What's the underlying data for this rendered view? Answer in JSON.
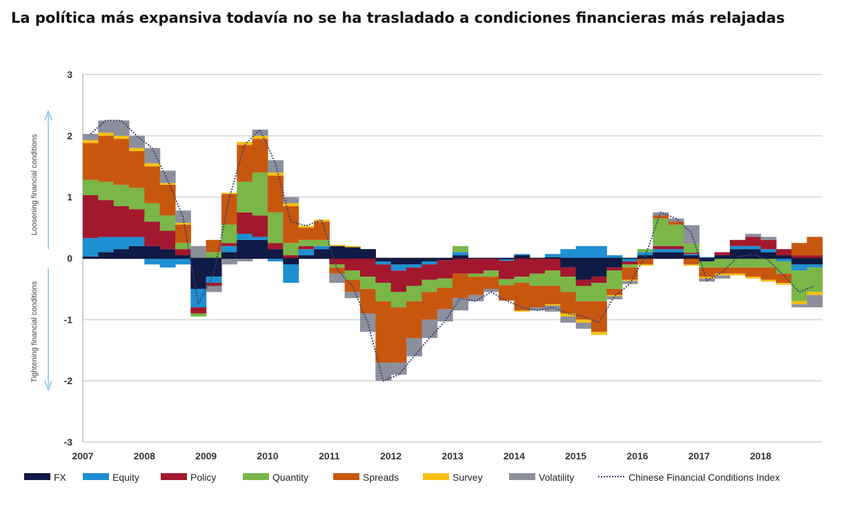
{
  "title": "La política más expansiva todavía no se ha trasladado a condiciones financieras más relajadas",
  "chart_data": {
    "type": "area",
    "stacked": true,
    "title": "La política más expansiva todavía no se ha trasladado a condiciones financieras más relajadas",
    "ylim": [
      -3,
      3
    ],
    "yticks": [
      "3",
      "2",
      "1",
      "0",
      "-1",
      "-2",
      "-3"
    ],
    "xticks": [
      "2007",
      "2008",
      "2009",
      "2010",
      "2011",
      "2012",
      "2013",
      "2014",
      "2015",
      "2016",
      "2017",
      "2018"
    ],
    "xlim": [
      2007,
      2019
    ],
    "grid": true,
    "legend": "bottom",
    "annotations": {
      "up": "Loosening financial conditions",
      "down": "Tightening financial conditions"
    },
    "x": [
      2007.0,
      2007.25,
      2007.5,
      2007.75,
      2008.0,
      2008.25,
      2008.5,
      2008.75,
      2009.0,
      2009.25,
      2009.5,
      2009.75,
      2010.0,
      2010.25,
      2010.5,
      2010.75,
      2011.0,
      2011.25,
      2011.5,
      2011.75,
      2012.0,
      2012.25,
      2012.5,
      2012.75,
      2013.0,
      2013.25,
      2013.5,
      2013.75,
      2014.0,
      2014.25,
      2014.5,
      2014.75,
      2015.0,
      2015.25,
      2015.5,
      2015.75,
      2016.0,
      2016.25,
      2016.5,
      2016.75,
      2017.0,
      2017.25,
      2017.5,
      2017.75,
      2018.0,
      2018.25,
      2018.5,
      2018.75
    ],
    "series": [
      {
        "name": "FX",
        "color": "#0f1a45",
        "values": [
          0.03,
          0.1,
          0.15,
          0.2,
          0.2,
          0.15,
          0.05,
          -0.5,
          -0.3,
          0.1,
          0.3,
          0.3,
          0.15,
          -0.1,
          0.05,
          0.15,
          0.2,
          0.18,
          0.15,
          -0.05,
          -0.1,
          -0.1,
          -0.05,
          -0.03,
          0.05,
          0,
          0,
          -0.02,
          0.05,
          0,
          0.02,
          -0.15,
          -0.35,
          -0.3,
          -0.15,
          0,
          0.05,
          0.1,
          0.1,
          0.05,
          -0.05,
          0.05,
          0.15,
          0.15,
          0.1,
          0.05,
          -0.1,
          -0.1
        ]
      },
      {
        "name": "Equity",
        "color": "#1e8fd0",
        "values": [
          0.3,
          0.25,
          0.2,
          0.15,
          -0.1,
          -0.15,
          -0.1,
          -0.3,
          -0.1,
          0.1,
          0.1,
          0.05,
          -0.05,
          -0.3,
          0.1,
          0.05,
          0,
          0,
          0,
          -0.05,
          -0.1,
          -0.05,
          -0.05,
          0,
          0.05,
          0,
          0,
          -0.02,
          0.02,
          0,
          0.05,
          0.15,
          0.2,
          0.2,
          0.05,
          -0.05,
          0.05,
          0.05,
          0.05,
          0.02,
          0.02,
          0,
          0.05,
          0.05,
          0.05,
          -0.05,
          -0.1,
          -0.05
        ]
      },
      {
        "name": "Policy",
        "color": "#a3182e",
        "values": [
          0.7,
          0.6,
          0.5,
          0.45,
          0.4,
          0.3,
          0.1,
          -0.1,
          -0.05,
          0.05,
          0.35,
          0.35,
          0.1,
          0.05,
          0.05,
          0,
          -0.1,
          -0.2,
          -0.3,
          -0.3,
          -0.35,
          -0.3,
          -0.25,
          -0.3,
          -0.25,
          -0.25,
          -0.2,
          -0.3,
          -0.3,
          -0.25,
          -0.2,
          -0.15,
          -0.1,
          -0.1,
          -0.05,
          -0.05,
          0,
          0.05,
          0.05,
          0.02,
          0,
          0.05,
          0.1,
          0.15,
          0.15,
          0.1,
          0.05,
          0.05
        ]
      },
      {
        "name": "Quantity",
        "color": "#7ab648",
        "values": [
          0.25,
          0.3,
          0.35,
          0.35,
          0.3,
          0.25,
          0.1,
          -0.05,
          0.1,
          0.3,
          0.5,
          0.7,
          0.5,
          0.2,
          0.1,
          0.1,
          -0.05,
          -0.15,
          -0.2,
          -0.3,
          -0.25,
          -0.25,
          -0.2,
          -0.15,
          0.1,
          -0.05,
          -0.1,
          -0.1,
          -0.1,
          -0.2,
          -0.25,
          -0.25,
          -0.25,
          -0.3,
          -0.3,
          -0.05,
          0.05,
          0.45,
          0.35,
          0.15,
          -0.1,
          -0.15,
          -0.15,
          -0.15,
          -0.15,
          -0.2,
          -0.5,
          -0.4
        ]
      },
      {
        "name": "Spreads",
        "color": "#c8570e",
        "values": [
          0.6,
          0.75,
          0.75,
          0.6,
          0.6,
          0.5,
          0.3,
          0,
          0.2,
          0.5,
          0.6,
          0.55,
          0.6,
          0.6,
          0.2,
          0.3,
          -0.1,
          -0.2,
          -0.4,
          -1.0,
          -0.9,
          -0.6,
          -0.45,
          -0.35,
          -0.4,
          -0.3,
          -0.2,
          -0.25,
          -0.45,
          -0.35,
          -0.3,
          -0.35,
          -0.3,
          -0.5,
          -0.1,
          -0.2,
          -0.1,
          0.05,
          0.05,
          -0.1,
          -0.15,
          -0.1,
          -0.1,
          -0.15,
          -0.2,
          -0.15,
          0.2,
          0.3
        ]
      },
      {
        "name": "Survey",
        "color": "#f7bf11",
        "values": [
          0.05,
          0.05,
          0.05,
          0.05,
          0.05,
          0.03,
          0.03,
          0,
          0,
          0.02,
          0.05,
          0.05,
          0.05,
          0.05,
          0.03,
          0.03,
          0.02,
          0.02,
          0,
          0,
          0,
          0,
          0,
          0,
          0,
          0,
          0,
          0,
          -0.02,
          0,
          -0.02,
          -0.05,
          -0.05,
          -0.05,
          -0.02,
          -0.02,
          -0.02,
          0,
          0,
          -0.02,
          -0.03,
          -0.03,
          -0.03,
          -0.03,
          -0.03,
          -0.03,
          -0.05,
          -0.05
        ]
      },
      {
        "name": "Volatility",
        "color": "#8c8f9c",
        "values": [
          0.1,
          0.2,
          0.25,
          0.2,
          0.25,
          0.2,
          0.2,
          0.2,
          -0.1,
          -0.1,
          -0.05,
          0.1,
          0.2,
          0.1,
          0,
          0,
          -0.15,
          -0.1,
          -0.3,
          -0.3,
          -0.2,
          -0.3,
          -0.3,
          -0.2,
          -0.2,
          -0.1,
          -0.05,
          0,
          0,
          -0.05,
          -0.1,
          -0.1,
          -0.1,
          0,
          -0.05,
          -0.05,
          0,
          0.05,
          0.05,
          0.3,
          -0.05,
          -0.05,
          0,
          0.05,
          0.05,
          0,
          -0.05,
          -0.2
        ]
      }
    ],
    "index": {
      "name": "Chinese Financial Conditions Index",
      "color": "#3b3f6e",
      "values": [
        2.03,
        2.25,
        2.25,
        2.0,
        1.8,
        1.28,
        0.68,
        -0.75,
        -0.25,
        0.97,
        1.85,
        2.1,
        1.55,
        0.6,
        0.53,
        0.63,
        -0.18,
        -0.45,
        -1.05,
        -2.0,
        -1.9,
        -1.6,
        -1.3,
        -1.03,
        -0.65,
        -0.7,
        -0.55,
        -0.69,
        -0.8,
        -0.85,
        -0.8,
        -0.9,
        -0.95,
        -1.05,
        -0.62,
        -0.42,
        0.03,
        0.75,
        0.65,
        0.42,
        -0.36,
        -0.23,
        0.02,
        0.07,
        -0.03,
        -0.28,
        -0.55,
        -0.45
      ]
    }
  }
}
